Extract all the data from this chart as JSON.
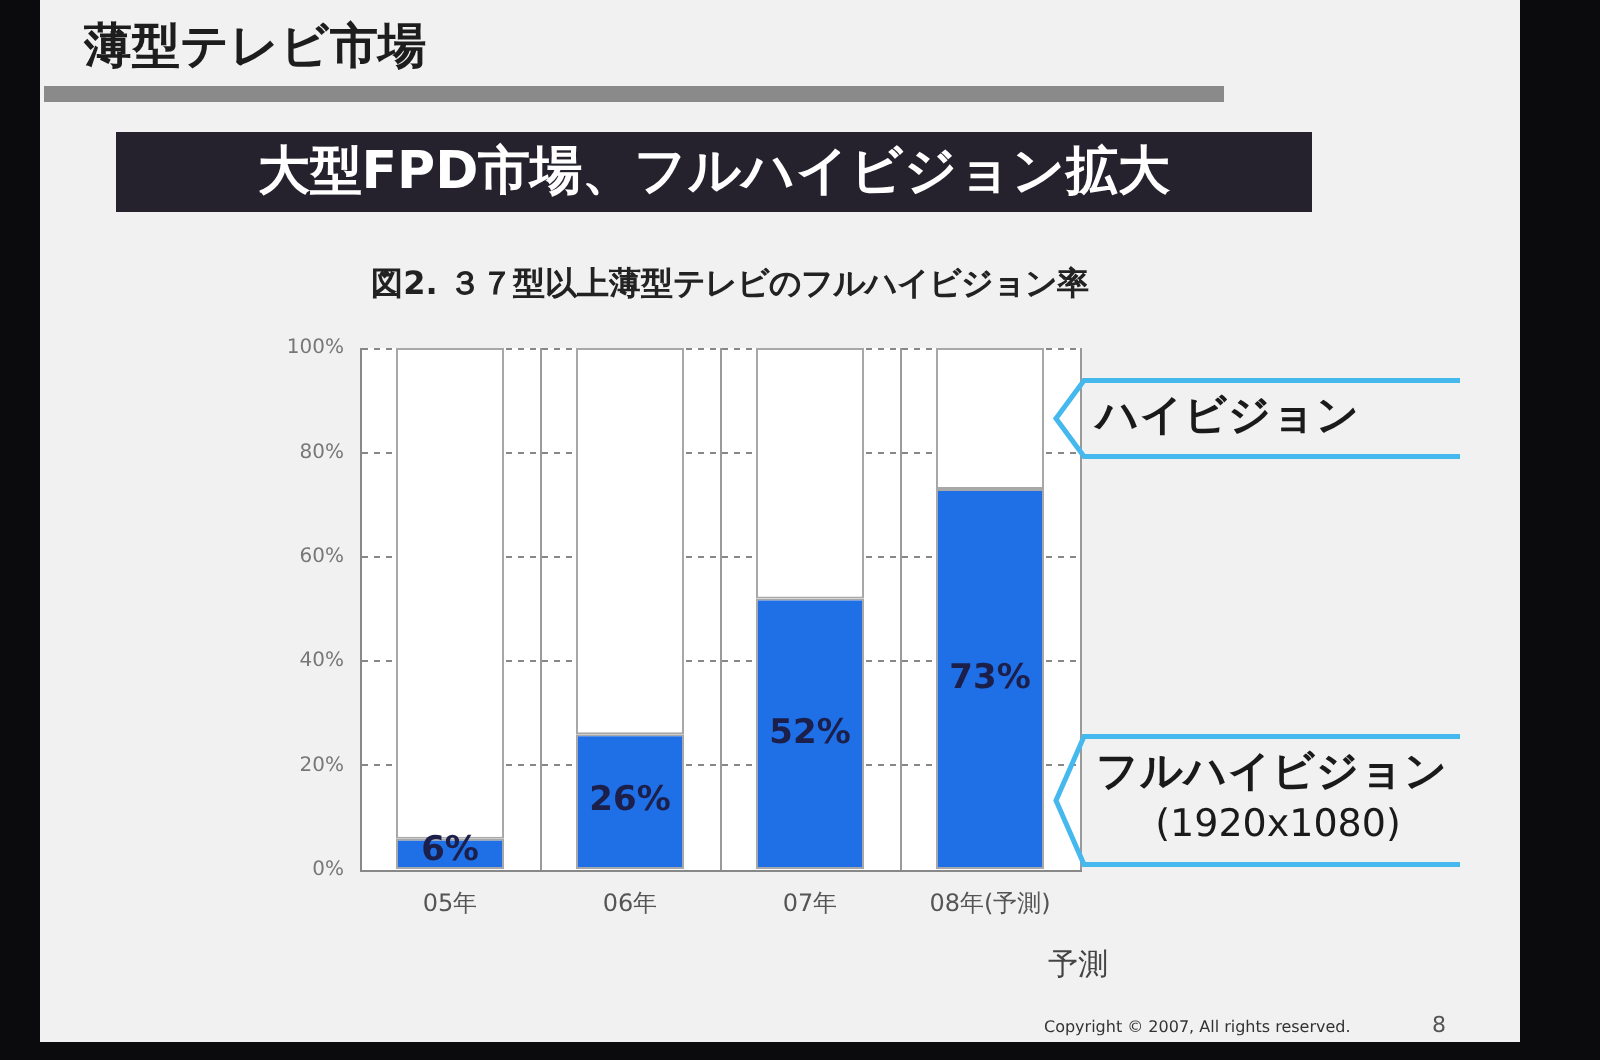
{
  "chart_data": {
    "type": "bar",
    "title": "図2. ３７型以上薄型テレビのフルハイビジョン率",
    "subtitle": "大型FPD市場、フルハイビジョン拡大",
    "categories": [
      "05年",
      "06年",
      "07年",
      "08年(予測)"
    ],
    "series": [
      {
        "name": "フルハイビジョン (1920x1080)",
        "color": "#1f6fe6",
        "values": [
          6,
          26,
          52,
          73
        ],
        "value_labels": [
          "6%",
          "26%",
          "52%",
          "73%"
        ]
      },
      {
        "name": "ハイビジョン",
        "color": "#ffffff",
        "values": [
          94,
          74,
          48,
          27
        ]
      }
    ],
    "stacked": true,
    "ylim": [
      0,
      100
    ],
    "yticks": [
      {
        "value": 0,
        "label": "0%"
      },
      {
        "value": 20,
        "label": "20%"
      },
      {
        "value": 40,
        "label": "40%"
      },
      {
        "value": 60,
        "label": "60%"
      },
      {
        "value": 80,
        "label": "80%"
      },
      {
        "value": 100,
        "label": "100%"
      }
    ],
    "grid": true,
    "annotations": [
      "薄型テレビ市場",
      "予測",
      "Copyright © 2007, All rights reserved.",
      "8"
    ]
  }
}
